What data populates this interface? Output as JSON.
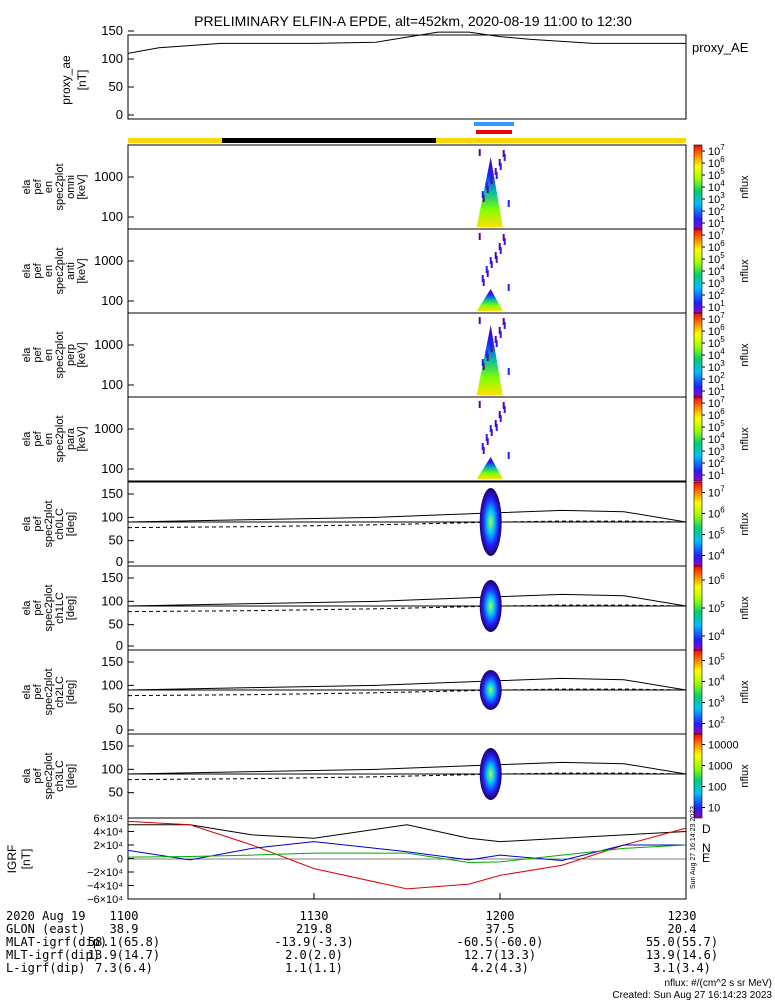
{
  "title": "PRELIMINARY ELFIN-A EPDE, alt=452km, 2020-08-19 11:00 to 12:30",
  "panels": [
    {
      "id": "proxy_ae",
      "ylabel": [
        "proxy_ae",
        "[nT]"
      ],
      "yticks": [
        "150",
        "100",
        "50",
        "0"
      ],
      "legend": "proxy_AE"
    },
    {
      "id": "omni",
      "ylabel": [
        "ela",
        "pef",
        "en",
        "spec2plot",
        "omni",
        "[keV]"
      ],
      "yticks": [
        "1000",
        "100"
      ],
      "cbticks": [
        "10",
        "10",
        "10",
        "10",
        "10",
        "10",
        "10"
      ],
      "cbexp": [
        "1",
        "2",
        "3",
        "4",
        "5",
        "6",
        "7"
      ],
      "cbtitle": "nflux"
    },
    {
      "id": "anti",
      "ylabel": [
        "ela",
        "pef",
        "en",
        "spec2plot",
        "anti",
        "[keV]"
      ],
      "yticks": [
        "1000",
        "100"
      ],
      "cbticks": [
        "10",
        "10",
        "10",
        "10",
        "10",
        "10",
        "10"
      ],
      "cbexp": [
        "1",
        "2",
        "3",
        "4",
        "5",
        "6",
        "7"
      ],
      "cbtitle": "nflux"
    },
    {
      "id": "perp",
      "ylabel": [
        "ela",
        "pef",
        "en",
        "spec2plot",
        "perp",
        "[keV]"
      ],
      "yticks": [
        "1000",
        "100"
      ],
      "cbticks": [
        "10",
        "10",
        "10",
        "10",
        "10",
        "10",
        "10"
      ],
      "cbexp": [
        "1",
        "2",
        "3",
        "4",
        "5",
        "6",
        "7"
      ],
      "cbtitle": "nflux"
    },
    {
      "id": "para",
      "ylabel": [
        "ela",
        "pef",
        "en",
        "spec2plot",
        "para",
        "[keV]"
      ],
      "yticks": [
        "1000",
        "100"
      ],
      "cbticks": [
        "10",
        "10",
        "10",
        "10",
        "10",
        "10",
        "10"
      ],
      "cbexp": [
        "1",
        "2",
        "3",
        "4",
        "5",
        "6",
        "7"
      ],
      "cbtitle": "nflux"
    },
    {
      "id": "ch0LC",
      "ylabel": [
        "ela",
        "pef",
        "spec2plot",
        "ch0LC",
        "[deg]"
      ],
      "yticks": [
        "150",
        "100",
        "50",
        "0"
      ],
      "cbticks": [
        "10",
        "10",
        "10",
        "10"
      ],
      "cbexp": [
        "7",
        "6",
        "5",
        "4"
      ],
      "cbtitle": "nflux"
    },
    {
      "id": "ch1LC",
      "ylabel": [
        "ela",
        "pef",
        "spec2plot",
        "ch1LC",
        "[deg]"
      ],
      "yticks": [
        "150",
        "100",
        "50",
        "0"
      ],
      "cbticks": [
        "10",
        "10",
        "10"
      ],
      "cbexp": [
        "6",
        "5",
        "4"
      ],
      "cbtitle": "nflux"
    },
    {
      "id": "ch2LC",
      "ylabel": [
        "ela",
        "pef",
        "spec2plot",
        "ch2LC",
        "[deg]"
      ],
      "yticks": [
        "150",
        "100",
        "50",
        "0"
      ],
      "cbticks": [
        "10",
        "10",
        "10",
        "10"
      ],
      "cbexp": [
        "5",
        "4",
        "3",
        "2"
      ],
      "cbtitle": "nflux"
    },
    {
      "id": "ch3LC",
      "ylabel": [
        "ela",
        "pef",
        "spec2plot",
        "ch3LC",
        "[deg]"
      ],
      "yticks": [
        "150",
        "100",
        "50"
      ],
      "cbticks": [
        "10000",
        "1000",
        "100",
        "10"
      ],
      "cbexp": [
        "",
        "",
        "",
        ""
      ],
      "cbtitle": "nflux"
    },
    {
      "id": "igrf",
      "ylabel": [
        "IGRF",
        "[nT]"
      ],
      "yticks": [
        "6×10⁴",
        "4×10⁴",
        "2×10⁴",
        "0",
        "−2×10⁴",
        "−4×10⁴",
        "−6×10⁴"
      ],
      "legend_labels": [
        "D",
        "N",
        "E"
      ],
      "legend_colors": [
        "#dd0000",
        "#0000cc",
        "#00aa00"
      ]
    }
  ],
  "bottom": {
    "row_labels": [
      "2020 Aug 19",
      "GLON (east)",
      "MLAT-igrf(dip)",
      "MLT-igrf(dip)",
      "L-igrf(dip)"
    ],
    "columns": [
      [
        "1100",
        "38.9",
        "58.1(65.8)",
        "13.9(14.7)",
        "7.3(6.4)"
      ],
      [
        "1130",
        "219.8",
        "-13.9(-3.3)",
        "2.0(2.0)",
        "1.1(1.1)"
      ],
      [
        "1200",
        "37.5",
        "-60.5(-60.0)",
        "12.7(13.3)",
        "4.2(4.3)"
      ],
      [
        "1230",
        "20.4",
        "55.0(55.7)",
        "13.9(14.6)",
        "3.1(3.4)"
      ]
    ]
  },
  "footer": {
    "units": "nflux: #/(cm^2 s sr MeV)",
    "created": "Created: Sun Aug 27 16:14:23 2023",
    "side_stamp": "Sun Aug 27 16:14:23 2023"
  },
  "chart_data": {
    "type": "line",
    "x_range": [
      "11:00",
      "12:30"
    ],
    "xtick_labels": [
      "1100",
      "1130",
      "1200",
      "1230"
    ],
    "proxy_ae": {
      "x_min": [
        0,
        5,
        15,
        30,
        40,
        50,
        55,
        60,
        65,
        75,
        90
      ],
      "values": [
        110,
        120,
        128,
        128,
        130,
        148,
        148,
        140,
        135,
        128,
        128
      ],
      "ylim": [
        0,
        150
      ]
    },
    "igrf": {
      "x_min": [
        0,
        10,
        20,
        30,
        45,
        55,
        60,
        70,
        80,
        90
      ],
      "D": [
        55000,
        50000,
        20000,
        -15000,
        -45000,
        -38000,
        -25000,
        -10000,
        20000,
        45000
      ],
      "N": [
        12000,
        -2000,
        15000,
        25000,
        10000,
        -2000,
        5000,
        -3000,
        20000,
        20000
      ],
      "E": [
        2000,
        3000,
        5000,
        8000,
        8000,
        -6000,
        -5000,
        5000,
        15000,
        20000
      ],
      "total": [
        50000,
        50000,
        35000,
        30000,
        50000,
        30000,
        25000,
        30000,
        35000,
        40000
      ],
      "ylim": [
        -60000,
        60000
      ]
    },
    "lc_lines_deg": {
      "upper": [
        90,
        95,
        100,
        110,
        115,
        112,
        90
      ],
      "lower": [
        78,
        80,
        84,
        90,
        92,
        92,
        90
      ],
      "x_min": [
        0,
        20,
        40,
        60,
        70,
        80,
        90
      ]
    }
  }
}
